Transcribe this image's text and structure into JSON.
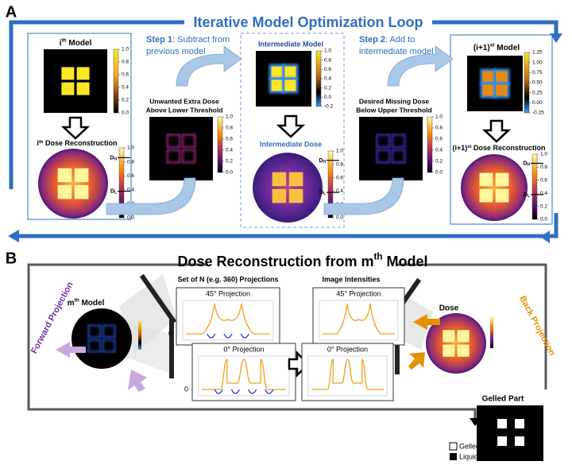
{
  "panel_a": {
    "label": "A",
    "title": "Iterative Model Optimization Loop",
    "step1": {
      "label": "Step 1",
      "lines": [
        ": Subtract from",
        "previous model"
      ]
    },
    "step2": {
      "label": "Step 2",
      "lines": [
        ": Add to",
        "intermediate model"
      ]
    },
    "ith_model": {
      "title": {
        "pre": "i",
        "sup": "th",
        "post": " Model"
      },
      "colorbar": [
        "1.0",
        "0.8",
        "0.6",
        "0.4",
        "0.2",
        "0.0"
      ]
    },
    "ith_dose": {
      "title": {
        "pre": "i",
        "sup": "th",
        "post": " Dose Reconstruction"
      },
      "colorbar": [
        "1.0",
        "0.8",
        "0.6",
        "0.4",
        "0.2",
        "0.0"
      ],
      "thresholds": [
        {
          "base": "D",
          "sub": "H"
        },
        {
          "base": "D",
          "sub": "L"
        }
      ]
    },
    "extra_dose": {
      "title": [
        "Unwanted Extra Dose",
        "Above Lower Threshold"
      ],
      "colorbar": [
        "1.0",
        "0.8",
        "0.6",
        "0.4",
        "0.2",
        "0.0"
      ]
    },
    "intermediate_model": {
      "title": "Intermediate Model",
      "colorbar": [
        "1.0",
        "0.8",
        "0.6",
        "0.4",
        "0.2",
        "0.0",
        "-0.2"
      ]
    },
    "intermediate_dose": {
      "title": "Intermediate Dose",
      "colorbar": [
        "1.0",
        "0.8",
        "0.6",
        "0.4",
        "0.2",
        "0.0"
      ],
      "thresholds": [
        {
          "base": "D",
          "sub": "H"
        },
        {
          "base": "D",
          "sub": "L"
        }
      ]
    },
    "missing_dose": {
      "title": [
        "Desired Missing Dose",
        "Below Upper Threshold"
      ],
      "colorbar": [
        "1.0",
        "0.8",
        "0.6",
        "0.4",
        "0.2",
        "0.0"
      ]
    },
    "next_model": {
      "title": {
        "pre": "(i+1)",
        "sup": "st",
        "post": " Model"
      },
      "colorbar": [
        "1.25",
        "1.00",
        "0.75",
        "0.50",
        "0.25",
        "0.00",
        "-0.25"
      ]
    },
    "next_dose": {
      "title": {
        "pre": "(i+1)",
        "sup": "st",
        "post": " Dose Reconstruction"
      },
      "colorbar": [
        "1.0",
        "0.8",
        "0.6",
        "0.4",
        "0.2",
        "0.0"
      ],
      "thresholds": [
        {
          "base": "D",
          "sub": "H"
        },
        {
          "base": "D",
          "sub": "L"
        }
      ]
    }
  },
  "panel_b": {
    "label": "B",
    "title": {
      "pre": "Dose Reconstruction from m",
      "sup": "th",
      "post": " Model"
    },
    "projections_title": "Set of N (e.g. 360) Projections",
    "intensities_title": "Image Intensities",
    "plots": [
      {
        "title": "45° Projection",
        "y_label": "0"
      },
      {
        "title": "0° Projection",
        "y_label": "0"
      },
      {
        "title": "45° Projection"
      },
      {
        "title": "0° Projection"
      }
    ],
    "forward": "Forward Projection",
    "back": "Back Projection",
    "model_title": {
      "pre": "m",
      "sup": "th",
      "post": " Model"
    },
    "dose_title": "Dose",
    "gelled_part": "Gelled Part",
    "legend": [
      "Gelled",
      "Liquid"
    ]
  }
}
